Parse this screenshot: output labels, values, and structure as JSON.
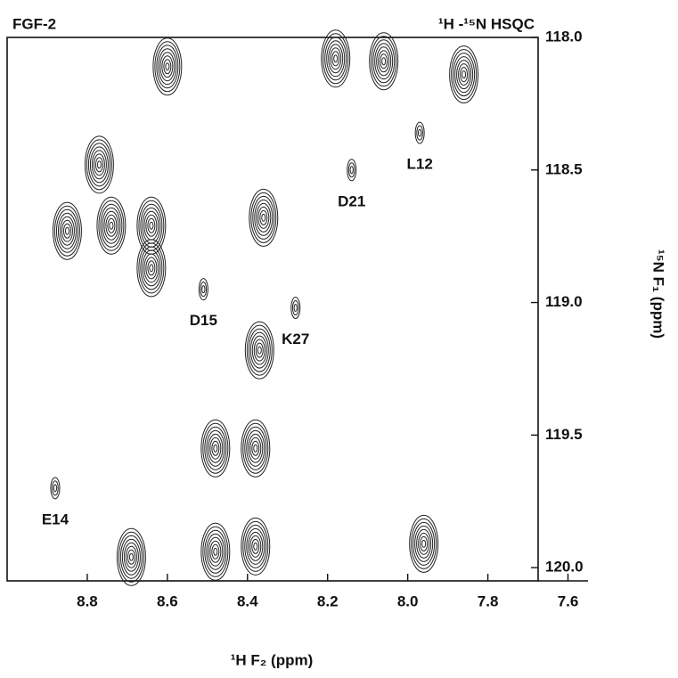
{
  "chart_data": {
    "type": "contour",
    "title": "FGF-2",
    "subtitle": "¹H -¹⁵N HSQC",
    "x_label": "¹H F₂ (ppm)",
    "y_label": "¹⁵N F₁ (ppm)",
    "xlim": [
      9.0,
      7.55
    ],
    "ylim": [
      118.0,
      120.05
    ],
    "xticks": [
      8.8,
      8.6,
      8.4,
      8.2,
      {
        "value": 8.0,
        "label": "8.0"
      },
      7.8,
      7.6
    ],
    "yticks": [
      {
        "value": 118.0,
        "label": "118.0"
      },
      118.5,
      {
        "value": 119.0,
        "label": "119.0"
      },
      119.5,
      {
        "value": 120.0,
        "label": "120.0"
      }
    ],
    "color": "#222222",
    "peaks": [
      {
        "x": 8.6,
        "y": 118.11
      },
      {
        "x": 8.18,
        "y": 118.08
      },
      {
        "x": 8.06,
        "y": 118.09
      },
      {
        "x": 7.86,
        "y": 118.14
      },
      {
        "x": 8.77,
        "y": 118.48
      },
      {
        "x": 8.85,
        "y": 118.73
      },
      {
        "x": 8.74,
        "y": 118.71
      },
      {
        "x": 8.64,
        "y": 118.71
      },
      {
        "x": 8.36,
        "y": 118.68
      },
      {
        "x": 8.64,
        "y": 118.87
      },
      {
        "x": 8.51,
        "y": 118.95,
        "label": "D15"
      },
      {
        "x": 8.28,
        "y": 119.02,
        "label": "K27"
      },
      {
        "x": 8.14,
        "y": 118.5,
        "label": "D21"
      },
      {
        "x": 7.97,
        "y": 118.36,
        "label": "L12"
      },
      {
        "x": 8.37,
        "y": 119.18
      },
      {
        "x": 8.38,
        "y": 119.55
      },
      {
        "x": 8.48,
        "y": 119.55
      },
      {
        "x": 8.38,
        "y": 119.92
      },
      {
        "x": 8.48,
        "y": 119.94
      },
      {
        "x": 8.69,
        "y": 119.96
      },
      {
        "x": 7.96,
        "y": 119.91
      },
      {
        "x": 8.88,
        "y": 119.7,
        "label": "E14"
      }
    ]
  }
}
